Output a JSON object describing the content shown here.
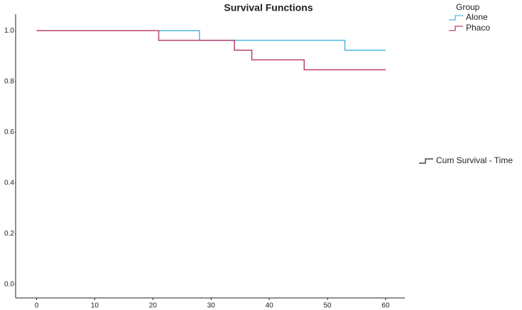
{
  "chart_data": {
    "type": "step",
    "title": "Survival Functions",
    "legend_title": "Group",
    "extra_legend": "Cum Survival - Time",
    "series": [
      {
        "name": "Alone",
        "color": "#4fb7e3",
        "x": [
          0,
          28,
          53,
          60
        ],
        "values": [
          1.0,
          0.962,
          0.923,
          0.923
        ]
      },
      {
        "name": "Phaco",
        "color": "#b8406f",
        "x": [
          0,
          21,
          34,
          37,
          46,
          60
        ],
        "values": [
          1.0,
          0.962,
          0.923,
          0.885,
          0.846,
          0.846
        ]
      }
    ],
    "xlim": [
      -3.6,
      63.3
    ],
    "xticks": [
      0,
      10,
      20,
      30,
      40,
      50,
      60
    ],
    "ylim": [
      -0.053,
      1.065
    ],
    "yticks": [
      {
        "value": 0,
        "label": "0.0"
      },
      {
        "value": 0.2,
        "label": "0.2"
      },
      {
        "value": 0.4,
        "label": "0.4"
      },
      {
        "value": 0.6,
        "label": "0.6"
      },
      {
        "value": 0.8,
        "label": "0.8"
      },
      {
        "value": 1.0,
        "label": "1.0"
      }
    ]
  }
}
